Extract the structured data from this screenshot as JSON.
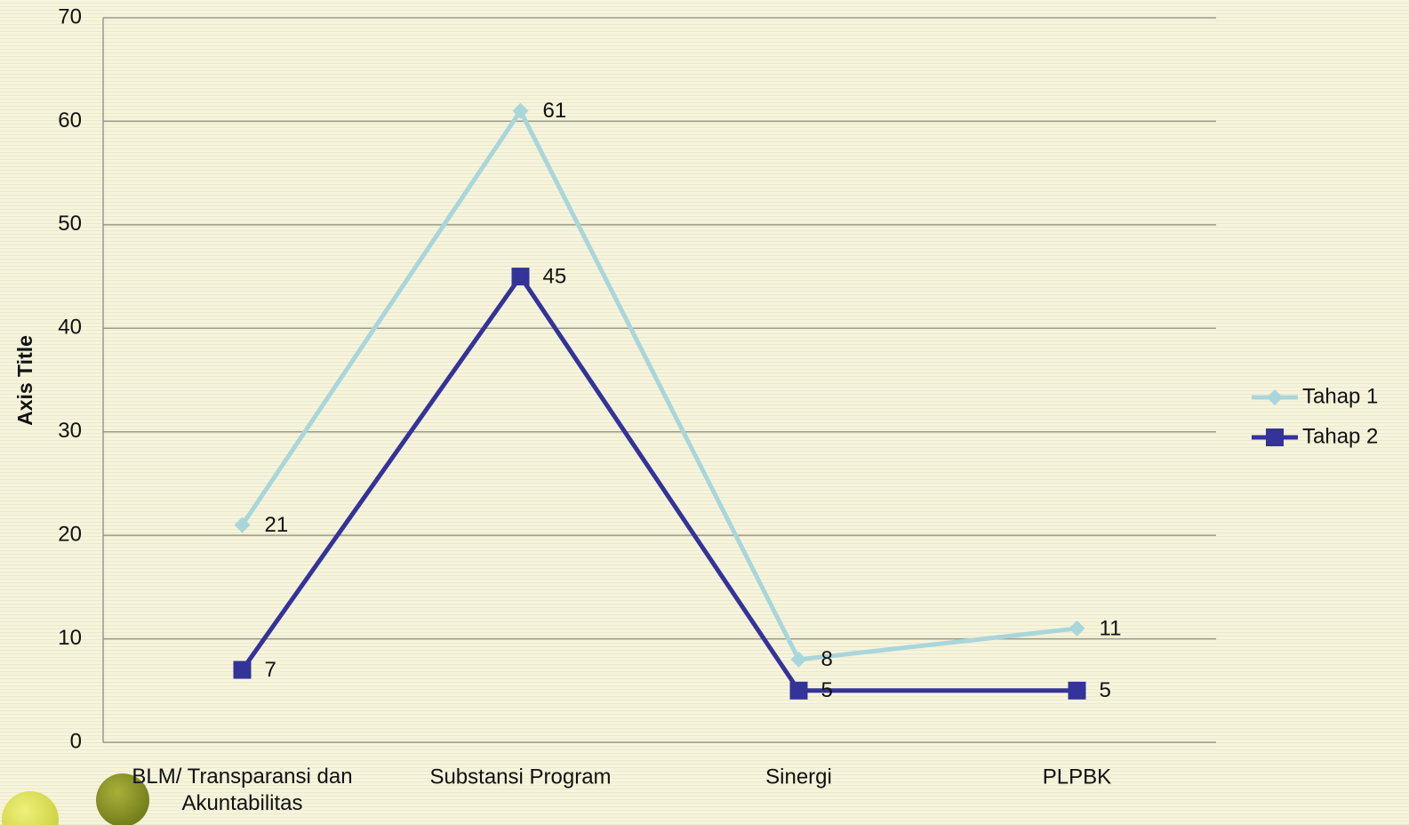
{
  "chart_data": {
    "type": "line",
    "y_label": "Axis Title",
    "categories": [
      "BLM/ Transparansi dan Akuntabilitas",
      "Substansi Program",
      "Sinergi",
      "PLPBK"
    ],
    "series": [
      {
        "name": "Tahap 1",
        "color": "#a9d6db",
        "marker": "diamond",
        "values": [
          21,
          61,
          8,
          11
        ]
      },
      {
        "name": "Tahap 2",
        "color": "#333399",
        "marker": "square",
        "values": [
          7,
          45,
          5,
          5
        ]
      }
    ],
    "ylim": [
      0,
      70
    ],
    "yticks": [
      0,
      10,
      20,
      30,
      40,
      50,
      60,
      70
    ],
    "grid": true,
    "legend": "right"
  }
}
